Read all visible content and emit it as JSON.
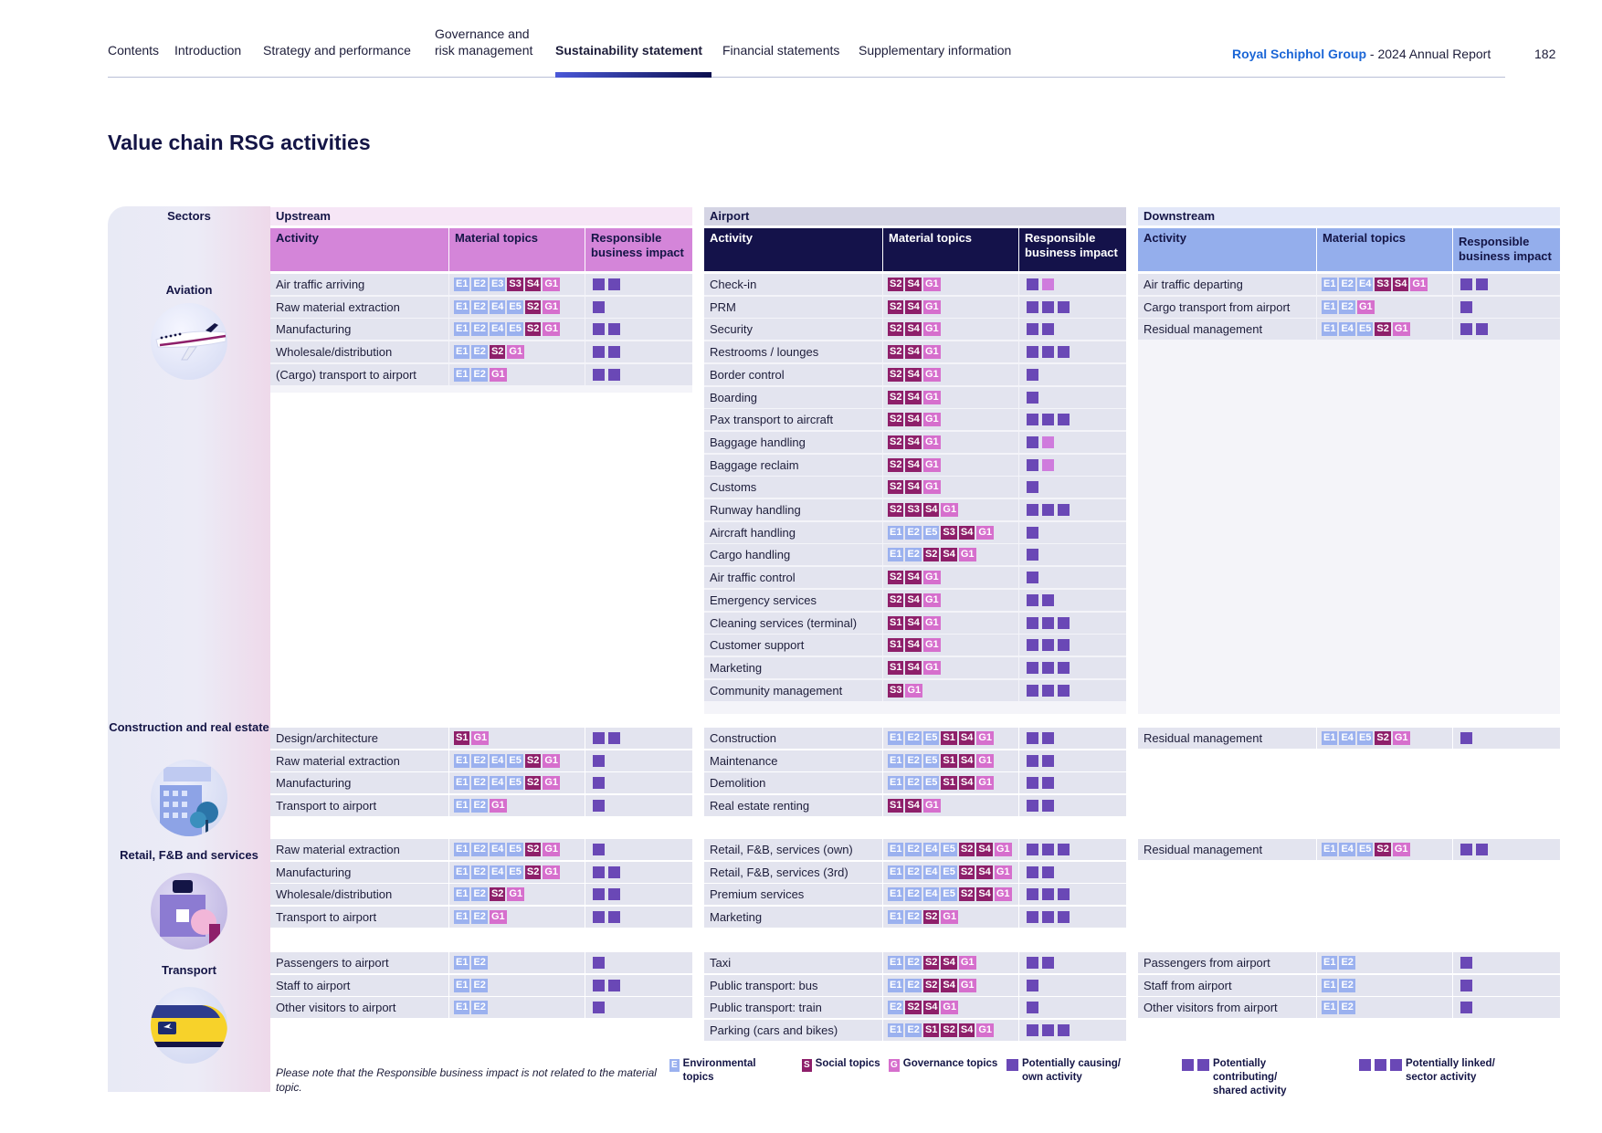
{
  "nav": {
    "items": [
      "Contents",
      "Introduction",
      "Strategy and performance",
      "Governance and risk management",
      "Sustainability statement",
      "Financial statements",
      "Supplementary information"
    ],
    "active": "Sustainability statement",
    "brand": "Royal Schiphol Group",
    "report": " - 2024 Annual Report",
    "page": "182"
  },
  "title": "Value chain RSG activities",
  "labels": {
    "sectors": "Sectors",
    "upstream": "Upstream",
    "airport": "Airport",
    "downstream": "Downstream",
    "activity": "Activity",
    "material_topics": "Material topics",
    "impact": "Responsible business impact"
  },
  "colors": {
    "upstream_title": "#f6e6f6",
    "upstream_head": "#d485d9",
    "airport_title": "#d4d4e4",
    "airport_head": "#14124a",
    "downstream_title": "#e2e7f8",
    "downstream_head": "#94aeec",
    "row_bg": "#e3e4ef",
    "env_tag": "#9bb1ef",
    "soc_tag": "#8e1f6a",
    "gov_tag": "#d66fcd",
    "impact_box": "#6a48b6",
    "impact_box_light": "#cf7bdd"
  },
  "sectors": [
    {
      "name": "Aviation",
      "icon": "airplane-icon",
      "upstream": [
        {
          "a": "Air traffic arriving",
          "t": [
            "E1",
            "E2",
            "E3",
            "S3",
            "S4",
            "G1"
          ],
          "i": 2
        },
        {
          "a": "Raw material extraction",
          "t": [
            "E1",
            "E2",
            "E4",
            "E5",
            "S2",
            "G1"
          ],
          "i": 1
        },
        {
          "a": "Manufacturing",
          "t": [
            "E1",
            "E2",
            "E4",
            "E5",
            "S2",
            "G1"
          ],
          "i": 2
        },
        {
          "a": "Wholesale/distribution",
          "t": [
            "E1",
            "E2",
            "S2",
            "G1"
          ],
          "i": 2
        },
        {
          "a": "(Cargo) transport to airport",
          "t": [
            "E1",
            "E2",
            "G1"
          ],
          "i": 2
        }
      ],
      "airport": [
        {
          "a": "Check-in",
          "t": [
            "S2",
            "S4",
            "G1"
          ],
          "i": 2,
          "l": 1
        },
        {
          "a": "PRM",
          "t": [
            "S2",
            "S4",
            "G1"
          ],
          "i": 3
        },
        {
          "a": "Security",
          "t": [
            "S2",
            "S4",
            "G1"
          ],
          "i": 2
        },
        {
          "a": "Restrooms / lounges",
          "t": [
            "S2",
            "S4",
            "G1"
          ],
          "i": 3
        },
        {
          "a": "Border control",
          "t": [
            "S2",
            "S4",
            "G1"
          ],
          "i": 1
        },
        {
          "a": "Boarding",
          "t": [
            "S2",
            "S4",
            "G1"
          ],
          "i": 1
        },
        {
          "a": "Pax transport to aircraft",
          "t": [
            "S2",
            "S4",
            "G1"
          ],
          "i": 3
        },
        {
          "a": "Baggage handling",
          "t": [
            "S2",
            "S4",
            "G1"
          ],
          "i": 2,
          "l": 1
        },
        {
          "a": "Baggage reclaim",
          "t": [
            "S2",
            "S4",
            "G1"
          ],
          "i": 2,
          "l": 1
        },
        {
          "a": "Customs",
          "t": [
            "S2",
            "S4",
            "G1"
          ],
          "i": 1
        },
        {
          "a": "Runway handling",
          "t": [
            "S2",
            "S3",
            "S4",
            "G1"
          ],
          "i": 3
        },
        {
          "a": "Aircraft handling",
          "t": [
            "E1",
            "E2",
            "E5",
            "S3",
            "S4",
            "G1"
          ],
          "i": 1
        },
        {
          "a": "Cargo handling",
          "t": [
            "E1",
            "E2",
            "S2",
            "S4",
            "G1"
          ],
          "i": 1
        },
        {
          "a": "Air traffic control",
          "t": [
            "S2",
            "S4",
            "G1"
          ],
          "i": 1
        },
        {
          "a": "Emergency services",
          "t": [
            "S2",
            "S4",
            "G1"
          ],
          "i": 2
        },
        {
          "a": "Cleaning services (terminal)",
          "t": [
            "S1",
            "S4",
            "G1"
          ],
          "i": 3
        },
        {
          "a": "Customer support",
          "t": [
            "S1",
            "S4",
            "G1"
          ],
          "i": 3
        },
        {
          "a": "Marketing",
          "t": [
            "S1",
            "S4",
            "G1"
          ],
          "i": 3
        },
        {
          "a": "Community management",
          "t": [
            "S3",
            "G1"
          ],
          "i": 3
        }
      ],
      "downstream": [
        {
          "a": "Air traffic departing",
          "t": [
            "E1",
            "E2",
            "E4",
            "S3",
            "S4",
            "G1"
          ],
          "i": 2
        },
        {
          "a": "Cargo transport from airport",
          "t": [
            "E1",
            "E2",
            "G1"
          ],
          "i": 1
        },
        {
          "a": "Residual management",
          "t": [
            "E1",
            "E4",
            "E5",
            "S2",
            "G1"
          ],
          "i": 2
        }
      ]
    },
    {
      "name": "Construction and real estate",
      "icon": "building-icon",
      "upstream": [
        {
          "a": "Design/architecture",
          "t": [
            "S1",
            "G1"
          ],
          "i": 2
        },
        {
          "a": "Raw material extraction",
          "t": [
            "E1",
            "E2",
            "E4",
            "E5",
            "S2",
            "G1"
          ],
          "i": 1
        },
        {
          "a": "Manufacturing",
          "t": [
            "E1",
            "E2",
            "E4",
            "E5",
            "S2",
            "G1"
          ],
          "i": 1
        },
        {
          "a": "Transport to airport",
          "t": [
            "E1",
            "E2",
            "G1"
          ],
          "i": 1
        }
      ],
      "airport": [
        {
          "a": "Construction",
          "t": [
            "E1",
            "E2",
            "E5",
            "S1",
            "S4",
            "G1"
          ],
          "i": 2
        },
        {
          "a": "Maintenance",
          "t": [
            "E1",
            "E2",
            "E5",
            "S1",
            "S4",
            "G1"
          ],
          "i": 2
        },
        {
          "a": "Demolition",
          "t": [
            "E1",
            "E2",
            "E5",
            "S1",
            "S4",
            "G1"
          ],
          "i": 2
        },
        {
          "a": "Real estate renting",
          "t": [
            "S1",
            "S4",
            "G1"
          ],
          "i": 2
        }
      ],
      "downstream": [
        {
          "a": "Residual management",
          "t": [
            "E1",
            "E4",
            "E5",
            "S2",
            "G1"
          ],
          "i": 1
        }
      ]
    },
    {
      "name": "Retail, F&B and services",
      "icon": "shopping-icon",
      "upstream": [
        {
          "a": "Raw material extraction",
          "t": [
            "E1",
            "E2",
            "E4",
            "E5",
            "S2",
            "G1"
          ],
          "i": 1
        },
        {
          "a": "Manufacturing",
          "t": [
            "E1",
            "E2",
            "E4",
            "E5",
            "S2",
            "G1"
          ],
          "i": 2
        },
        {
          "a": "Wholesale/distribution",
          "t": [
            "E1",
            "E2",
            "S2",
            "G1"
          ],
          "i": 2
        },
        {
          "a": "Transport to airport",
          "t": [
            "E1",
            "E2",
            "G1"
          ],
          "i": 2
        }
      ],
      "airport": [
        {
          "a": "Retail, F&B, services (own)",
          "t": [
            "E1",
            "E2",
            "E4",
            "E5",
            "S2",
            "S4",
            "G1"
          ],
          "i": 3
        },
        {
          "a": "Retail, F&B, services (3rd)",
          "t": [
            "E1",
            "E2",
            "E4",
            "E5",
            "S2",
            "S4",
            "G1"
          ],
          "i": 2
        },
        {
          "a": "Premium services",
          "t": [
            "E1",
            "E2",
            "E4",
            "E5",
            "S2",
            "S4",
            "G1"
          ],
          "i": 3
        },
        {
          "a": "Marketing",
          "t": [
            "E1",
            "E2",
            "S2",
            "G1"
          ],
          "i": 3
        }
      ],
      "downstream": [
        {
          "a": "Residual management",
          "t": [
            "E1",
            "E4",
            "E5",
            "S2",
            "G1"
          ],
          "i": 2
        }
      ]
    },
    {
      "name": "Transport",
      "icon": "train-icon",
      "upstream": [
        {
          "a": "Passengers to airport",
          "t": [
            "E1",
            "E2"
          ],
          "i": 1
        },
        {
          "a": "Staff to airport",
          "t": [
            "E1",
            "E2"
          ],
          "i": 2
        },
        {
          "a": "Other visitors to airport",
          "t": [
            "E1",
            "E2"
          ],
          "i": 1
        }
      ],
      "airport": [
        {
          "a": "Taxi",
          "t": [
            "E1",
            "E2",
            "S2",
            "S4",
            "G1"
          ],
          "i": 2
        },
        {
          "a": "Public transport: bus",
          "t": [
            "E1",
            "E2",
            "S2",
            "S4",
            "G1"
          ],
          "i": 1
        },
        {
          "a": "Public transport: train",
          "t": [
            "E2",
            "S2",
            "S4",
            "G1"
          ],
          "i": 1
        },
        {
          "a": "Parking (cars and bikes)",
          "t": [
            "E1",
            "E2",
            "S1",
            "S2",
            "S4",
            "G1"
          ],
          "i": 3
        }
      ],
      "downstream": [
        {
          "a": "Passengers from airport",
          "t": [
            "E1",
            "E2"
          ],
          "i": 1
        },
        {
          "a": "Staff from airport",
          "t": [
            "E1",
            "E2"
          ],
          "i": 1
        },
        {
          "a": "Other visitors from airport",
          "t": [
            "E1",
            "E2"
          ],
          "i": 1
        }
      ]
    }
  ],
  "footer": {
    "note": "Please note that the Responsible business impact is not related to the material topic.",
    "legend": [
      {
        "k": "E",
        "label": "Environmental topics"
      },
      {
        "k": "S",
        "label": "Social topics"
      },
      {
        "k": "G",
        "label": "Governance topics"
      },
      {
        "k": 1,
        "label": "Potentially causing/ own activity"
      },
      {
        "k": 2,
        "label": "Potentially contributing/ shared activity"
      },
      {
        "k": 3,
        "label": "Potentially linked/ sector activity"
      }
    ]
  }
}
